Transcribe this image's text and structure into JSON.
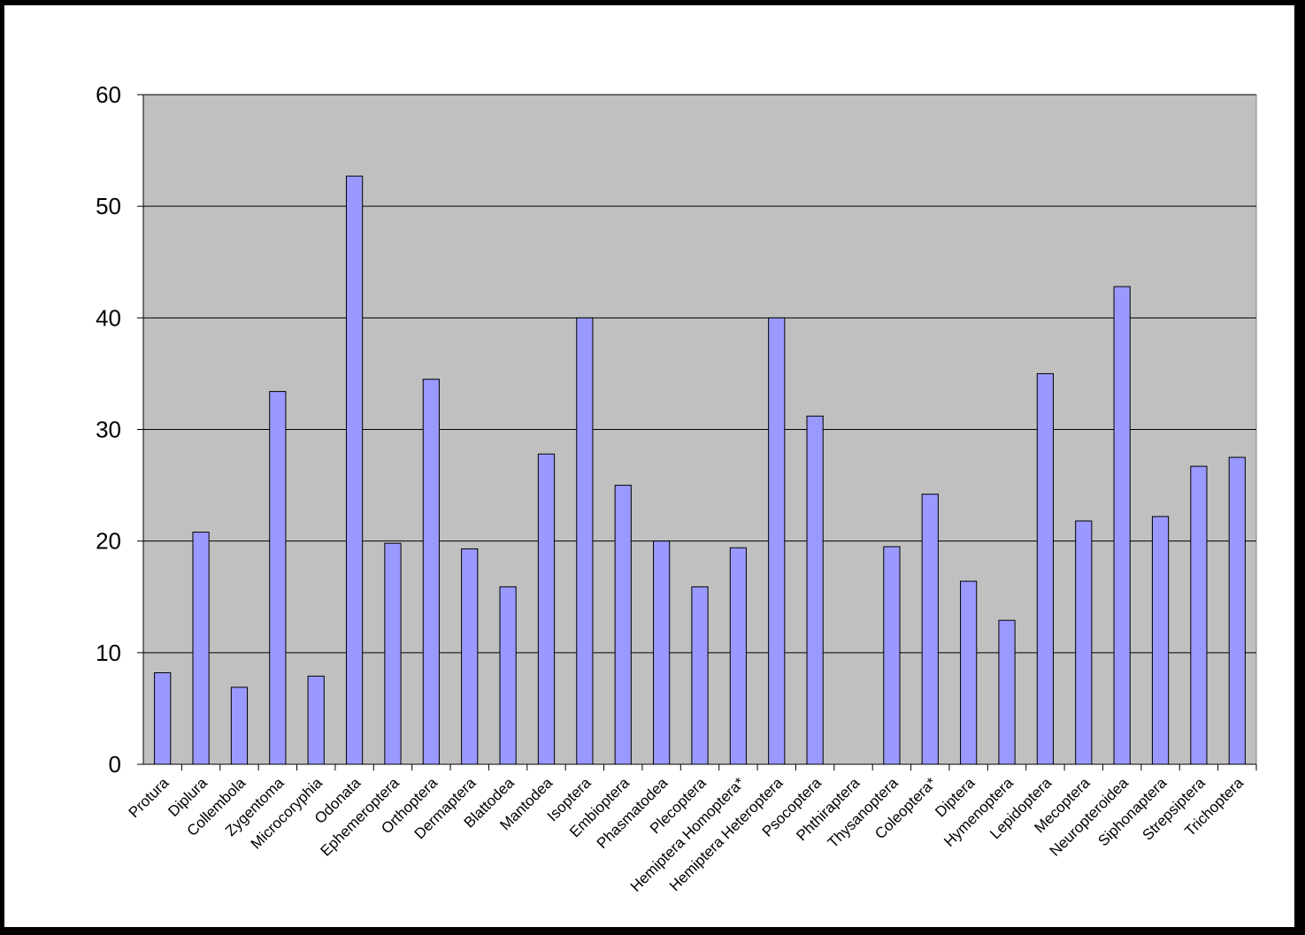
{
  "chart_data": {
    "type": "bar",
    "title": "",
    "xlabel": "",
    "ylabel": "",
    "ylim": [
      0,
      60
    ],
    "yticks": [
      0,
      10,
      20,
      30,
      40,
      50,
      60
    ],
    "grid": true,
    "legend": "none",
    "colors": {
      "bar": "#9999ff",
      "plot_background": "#c0c0c0",
      "page_background": "#ffffff",
      "frame": "#000000"
    },
    "categories": [
      "Protura",
      "Diplura",
      "Collembola",
      "Zygentoma",
      "Microcoryphia",
      "Odonata",
      "Ephemeroptera",
      "Orthoptera",
      "Dermaptera",
      "Blattodea",
      "Mantodea",
      "Isoptera",
      "Embioptera",
      "Phasmatodea",
      "Plecoptera",
      "Hemiptera Homoptera*",
      "Hemiptera Heteroptera",
      "Psocoptera",
      "Phthiraptera",
      "Thysanoptera",
      "Coleoptera*",
      "Diptera",
      "Hymenoptera",
      "Lepidoptera",
      "Mecoptera",
      "Neuropteroidea",
      "Siphonaptera",
      "Strepsiptera",
      "Trichoptera"
    ],
    "values": [
      8.2,
      20.8,
      6.9,
      33.4,
      7.9,
      52.7,
      19.8,
      34.5,
      19.3,
      15.9,
      27.8,
      40.0,
      25.0,
      20.0,
      15.9,
      19.4,
      40.0,
      31.2,
      0,
      19.5,
      24.2,
      16.4,
      12.9,
      35.0,
      21.8,
      42.8,
      22.2,
      26.7,
      27.5
    ]
  }
}
